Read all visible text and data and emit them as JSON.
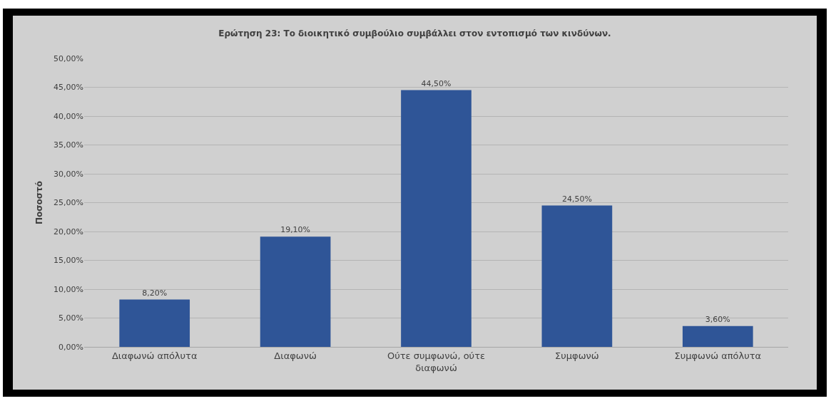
{
  "chart_data": {
    "type": "bar",
    "title": "Ερώτηση 23: Το διοικητικό συμβούλιο συμβάλλει στον εντοπισμό των κινδύνων.",
    "ylabel": "Ποσοστό",
    "categories": [
      "Διαφωνώ απόλυτα",
      "Διαφωνώ",
      "Ούτε συμφωνώ, ούτε διαφωνώ",
      "Συμφωνώ",
      "Συμφωνώ απόλυτα"
    ],
    "values": [
      8.2,
      19.1,
      44.5,
      24.5,
      3.6
    ],
    "value_labels": [
      "8,20%",
      "19,10%",
      "44,50%",
      "24,50%",
      "3,60%"
    ],
    "color": "#2f5597",
    "ylim": [
      0,
      50
    ],
    "yticks": [
      {
        "value": 0,
        "label": "0,00%"
      },
      {
        "value": 5,
        "label": "5,00%"
      },
      {
        "value": 10,
        "label": "10,00%"
      },
      {
        "value": 15,
        "label": "15,00%"
      },
      {
        "value": 20,
        "label": "20,00%"
      },
      {
        "value": 25,
        "label": "25,00%"
      },
      {
        "value": 30,
        "label": "30,00%"
      },
      {
        "value": 35,
        "label": "35,00%"
      },
      {
        "value": 40,
        "label": "40,00%"
      },
      {
        "value": 45,
        "label": "45,00%"
      },
      {
        "value": 50,
        "label": "50,00%"
      }
    ],
    "grid": "y"
  }
}
